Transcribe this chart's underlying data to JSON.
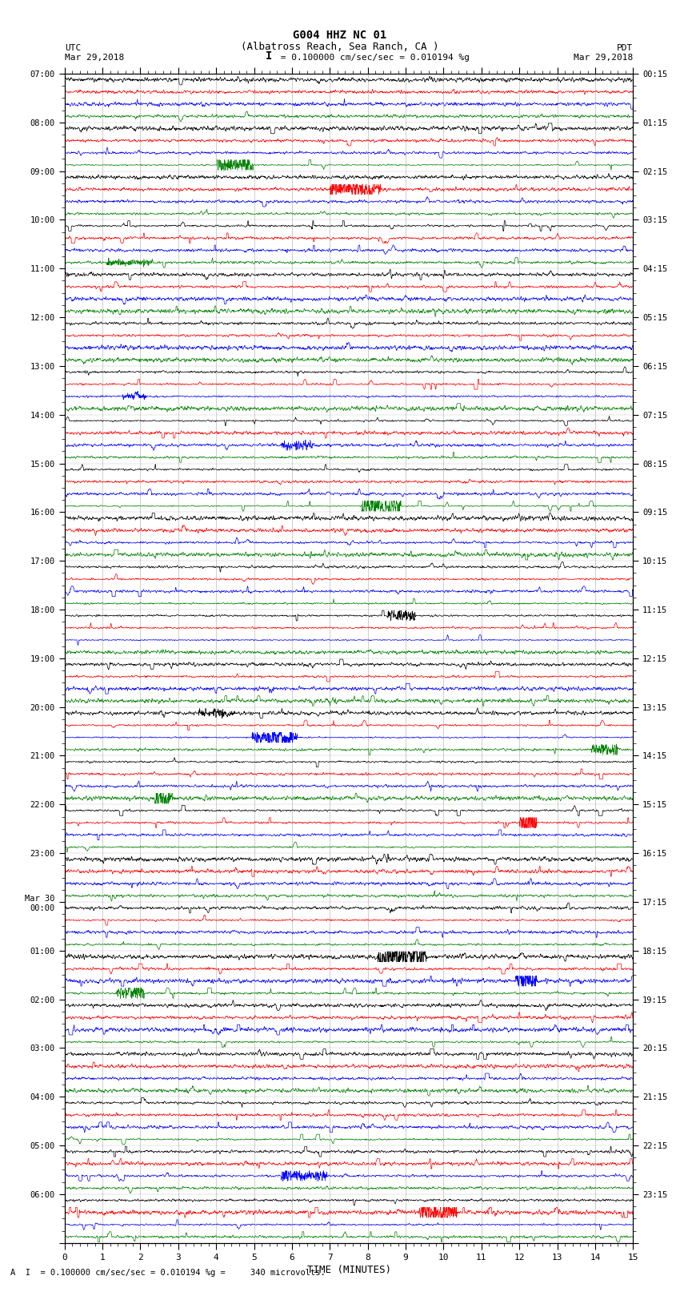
{
  "title_line1": "G004 HHZ NC 01",
  "title_line2": "(Albatross Reach, Sea Ranch, CA )",
  "scale_bar_text": "= 0.100000 cm/sec/sec = 0.010194 %g",
  "footer_text": "A  I  = 0.100000 cm/sec/sec = 0.010194 %g =     340 microvolts.",
  "left_label": "UTC",
  "left_date": "Mar 29,2018",
  "right_label": "PDT",
  "right_date": "Mar 29,2018",
  "xlabel": "TIME (MINUTES)",
  "background_color": "#ffffff",
  "trace_colors": [
    "#000000",
    "#ff0000",
    "#0000ff",
    "#008000"
  ],
  "utc_labels": [
    "07:00",
    "08:00",
    "09:00",
    "10:00",
    "11:00",
    "12:00",
    "13:00",
    "14:00",
    "15:00",
    "16:00",
    "17:00",
    "18:00",
    "19:00",
    "20:00",
    "21:00",
    "22:00",
    "23:00",
    "Mar 30\n00:00",
    "01:00",
    "02:00",
    "03:00",
    "04:00",
    "05:00",
    "06:00"
  ],
  "pdt_labels": [
    "00:15",
    "01:15",
    "02:15",
    "03:15",
    "04:15",
    "05:15",
    "06:15",
    "07:15",
    "08:15",
    "09:15",
    "10:15",
    "11:15",
    "12:15",
    "13:15",
    "14:15",
    "15:15",
    "16:15",
    "17:15",
    "18:15",
    "19:15",
    "20:15",
    "21:15",
    "22:15",
    "23:15"
  ],
  "n_hours": 24,
  "traces_per_hour": 4,
  "n_cols": 2000,
  "xmin": 0,
  "xmax": 15,
  "row_amplitude": 0.42,
  "noise_base": 0.08,
  "spike_prob": 0.004,
  "spike_scale": 0.55,
  "grid_color": "#888888",
  "grid_linewidth": 0.4,
  "trace_linewidth": 0.5
}
